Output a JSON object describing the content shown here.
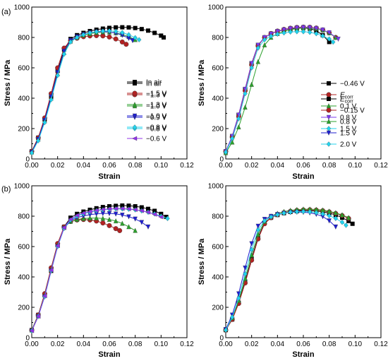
{
  "panel_labels": [
    "(a)",
    "(b)"
  ],
  "chart_data": [
    {
      "id": "a-left",
      "type": "line",
      "xlabel": "Strain",
      "ylabel": "Stress / MPa",
      "xlim": [
        0,
        0.12
      ],
      "ylim": [
        0,
        1000
      ],
      "xticks": [
        0.0,
        0.02,
        0.04,
        0.06,
        0.08,
        0.1,
        0.12
      ],
      "yticks": [
        0,
        200,
        400,
        600,
        800,
        1000
      ],
      "legend_position": "center-right",
      "series": [
        {
          "name": "In air",
          "color": "#000000",
          "marker": "square",
          "x": [
            0,
            0.005,
            0.01,
            0.015,
            0.02,
            0.025,
            0.03,
            0.035,
            0.04,
            0.045,
            0.05,
            0.055,
            0.06,
            0.065,
            0.07,
            0.075,
            0.08,
            0.085,
            0.09,
            0.095,
            0.1,
            0.102
          ],
          "y": [
            50,
            140,
            260,
            410,
            580,
            720,
            790,
            815,
            830,
            842,
            851,
            858,
            863,
            866,
            867,
            866,
            862,
            855,
            845,
            830,
            812,
            800
          ]
        },
        {
          "name": "−1.3 V",
          "color": "#b22222",
          "marker": "circle",
          "x": [
            0,
            0.005,
            0.01,
            0.015,
            0.02,
            0.025,
            0.03,
            0.035,
            0.04,
            0.045,
            0.05,
            0.055,
            0.06,
            0.065,
            0.07,
            0.073
          ],
          "y": [
            50,
            140,
            270,
            430,
            600,
            730,
            780,
            795,
            805,
            810,
            812,
            810,
            803,
            790,
            770,
            755
          ]
        },
        {
          "name": "−1.0 V",
          "color": "#2ca02c",
          "marker": "triangle-up",
          "x": [
            0,
            0.005,
            0.01,
            0.015,
            0.02,
            0.025,
            0.03,
            0.035,
            0.04,
            0.045,
            0.05,
            0.055,
            0.06,
            0.065,
            0.07,
            0.075,
            0.08
          ],
          "y": [
            45,
            130,
            250,
            400,
            560,
            700,
            775,
            800,
            815,
            825,
            832,
            836,
            835,
            830,
            820,
            805,
            785
          ]
        },
        {
          "name": "−0.9 V",
          "color": "#1f1fd0",
          "marker": "triangle-down",
          "x": [
            0,
            0.005,
            0.01,
            0.015,
            0.02,
            0.025,
            0.03,
            0.035,
            0.04,
            0.045,
            0.05,
            0.055,
            0.06,
            0.065,
            0.07,
            0.075,
            0.078
          ],
          "y": [
            45,
            130,
            255,
            410,
            570,
            710,
            780,
            805,
            820,
            830,
            836,
            838,
            836,
            828,
            815,
            795,
            780
          ]
        },
        {
          "name": "−0.8 V",
          "color": "#22d3ee",
          "marker": "diamond",
          "x": [
            0,
            0.005,
            0.01,
            0.015,
            0.02,
            0.025,
            0.03,
            0.035,
            0.04,
            0.045,
            0.05,
            0.055,
            0.06,
            0.065,
            0.07,
            0.075,
            0.08,
            0.083
          ],
          "y": [
            40,
            120,
            240,
            390,
            550,
            690,
            770,
            800,
            818,
            830,
            838,
            842,
            843,
            840,
            832,
            818,
            798,
            785
          ]
        }
      ]
    },
    {
      "id": "a-right",
      "type": "line",
      "xlabel": "Strain",
      "ylabel": "Stress / MPa",
      "xlim": [
        0,
        0.12
      ],
      "ylim": [
        0,
        1000
      ],
      "xticks": [
        0.0,
        0.02,
        0.04,
        0.06,
        0.08,
        0.1,
        0.12
      ],
      "yticks": [
        0,
        200,
        400,
        600,
        800,
        1000
      ],
      "legend_position": "center-right",
      "series": [
        {
          "name": "−0.46 V",
          "color": "#000000",
          "marker": "square",
          "x": [
            0,
            0.005,
            0.01,
            0.015,
            0.02,
            0.025,
            0.03,
            0.035,
            0.04,
            0.045,
            0.05,
            0.055,
            0.06,
            0.065,
            0.07,
            0.075,
            0.08
          ],
          "y": [
            50,
            150,
            290,
            460,
            630,
            750,
            800,
            825,
            840,
            850,
            857,
            861,
            862,
            858,
            845,
            815,
            770
          ]
        },
        {
          "name": "E_corr",
          "color": "#b22222",
          "marker": "circle",
          "x": [
            0,
            0.005,
            0.01,
            0.015,
            0.02,
            0.025,
            0.03,
            0.035,
            0.04,
            0.045,
            0.05,
            0.055,
            0.06,
            0.065,
            0.07,
            0.075,
            0.08,
            0.085
          ],
          "y": [
            50,
            145,
            280,
            450,
            620,
            745,
            800,
            826,
            842,
            853,
            861,
            866,
            868,
            867,
            862,
            850,
            830,
            800
          ]
        },
        {
          "name": "0.1 V",
          "color": "#2ca02c",
          "marker": "triangle-up",
          "x": [
            0,
            0.005,
            0.01,
            0.015,
            0.02,
            0.025,
            0.03,
            0.035,
            0.04,
            0.045,
            0.05,
            0.055,
            0.06,
            0.065,
            0.07,
            0.075,
            0.08,
            0.085
          ],
          "y": [
            40,
            110,
            210,
            340,
            490,
            640,
            750,
            800,
            825,
            840,
            851,
            858,
            862,
            862,
            858,
            848,
            830,
            800
          ]
        },
        {
          "name": "0.8 V",
          "color": "#7c3aed",
          "marker": "triangle-down",
          "x": [
            0,
            0.005,
            0.01,
            0.015,
            0.02,
            0.025,
            0.03,
            0.035,
            0.04,
            0.045,
            0.05,
            0.055,
            0.06,
            0.065,
            0.07,
            0.075,
            0.08,
            0.087
          ],
          "y": [
            50,
            150,
            290,
            460,
            630,
            750,
            800,
            824,
            840,
            851,
            859,
            864,
            866,
            865,
            860,
            850,
            832,
            790
          ]
        },
        {
          "name": "1.5 V",
          "color": "#22d3ee",
          "marker": "diamond",
          "x": [
            0,
            0.005,
            0.01,
            0.015,
            0.02,
            0.025,
            0.03,
            0.035,
            0.04,
            0.045,
            0.05,
            0.055,
            0.06,
            0.065,
            0.07,
            0.075,
            0.08,
            0.083
          ],
          "y": [
            45,
            135,
            265,
            430,
            600,
            730,
            785,
            808,
            822,
            830,
            836,
            838,
            838,
            834,
            825,
            810,
            790,
            770
          ]
        }
      ]
    },
    {
      "id": "b-left",
      "type": "line",
      "xlabel": "Strain",
      "ylabel": "Stress / MPa",
      "xlim": [
        0,
        0.12
      ],
      "ylim": [
        0,
        1000
      ],
      "xticks": [
        0.0,
        0.02,
        0.04,
        0.06,
        0.08,
        0.1,
        0.12
      ],
      "yticks": [
        0,
        200,
        400,
        600,
        800,
        1000
      ],
      "legend_position": "center-right",
      "series": [
        {
          "name": "In air",
          "color": "#000000",
          "marker": "square",
          "x": [
            0,
            0.005,
            0.01,
            0.015,
            0.02,
            0.025,
            0.03,
            0.035,
            0.04,
            0.045,
            0.05,
            0.055,
            0.06,
            0.065,
            0.07,
            0.075,
            0.08,
            0.085,
            0.09,
            0.095,
            0.1,
            0.104
          ],
          "y": [
            50,
            150,
            280,
            440,
            610,
            730,
            790,
            815,
            830,
            842,
            852,
            860,
            865,
            868,
            870,
            869,
            865,
            858,
            848,
            835,
            815,
            795
          ]
        },
        {
          "name": "−1.5 V",
          "color": "#b22222",
          "marker": "circle",
          "x": [
            0,
            0.005,
            0.01,
            0.015,
            0.02,
            0.025,
            0.03,
            0.035,
            0.04,
            0.045,
            0.05,
            0.055,
            0.06,
            0.065,
            0.068
          ],
          "y": [
            50,
            150,
            290,
            460,
            620,
            730,
            765,
            775,
            778,
            775,
            768,
            755,
            738,
            718,
            705
          ]
        },
        {
          "name": "−1.3 V",
          "color": "#2ca02c",
          "marker": "triangle-up",
          "x": [
            0,
            0.005,
            0.01,
            0.015,
            0.02,
            0.025,
            0.03,
            0.035,
            0.04,
            0.045,
            0.05,
            0.055,
            0.06,
            0.065,
            0.07,
            0.075,
            0.08
          ],
          "y": [
            50,
            145,
            280,
            450,
            610,
            725,
            765,
            778,
            784,
            787,
            788,
            785,
            778,
            768,
            752,
            730,
            705
          ]
        },
        {
          "name": "−1.0 V",
          "color": "#1f1fd0",
          "marker": "triangle-down",
          "x": [
            0,
            0.005,
            0.01,
            0.015,
            0.02,
            0.025,
            0.03,
            0.035,
            0.04,
            0.045,
            0.05,
            0.055,
            0.06,
            0.065,
            0.07,
            0.075,
            0.08,
            0.085,
            0.09
          ],
          "y": [
            45,
            140,
            270,
            440,
            600,
            720,
            770,
            790,
            802,
            810,
            815,
            818,
            818,
            815,
            808,
            797,
            782,
            760,
            730
          ]
        },
        {
          "name": "−0.8 V",
          "color": "#22d3ee",
          "marker": "diamond",
          "x": [
            0,
            0.005,
            0.01,
            0.015,
            0.02,
            0.025,
            0.03,
            0.035,
            0.04,
            0.045,
            0.05,
            0.055,
            0.06,
            0.065,
            0.07,
            0.075,
            0.08,
            0.085,
            0.09,
            0.095,
            0.1,
            0.105
          ],
          "y": [
            45,
            140,
            270,
            440,
            600,
            720,
            775,
            800,
            816,
            827,
            836,
            842,
            846,
            848,
            848,
            846,
            842,
            835,
            826,
            815,
            800,
            785
          ]
        },
        {
          "name": "−0.6 V",
          "color": "#9333ea",
          "marker": "triangle-left",
          "x": [
            0,
            0.005,
            0.01,
            0.015,
            0.02,
            0.025,
            0.03,
            0.035,
            0.04,
            0.045,
            0.05,
            0.055,
            0.06,
            0.065,
            0.07,
            0.075,
            0.08,
            0.085,
            0.09,
            0.095,
            0.1
          ],
          "y": [
            45,
            140,
            275,
            445,
            605,
            725,
            780,
            805,
            820,
            830,
            838,
            844,
            848,
            850,
            850,
            848,
            843,
            836,
            826,
            812,
            795
          ]
        }
      ]
    },
    {
      "id": "b-right",
      "type": "line",
      "xlabel": "Strain",
      "ylabel": "Stress / MPa",
      "xlim": [
        0,
        0.12
      ],
      "ylim": [
        0,
        1000
      ],
      "xticks": [
        0.0,
        0.02,
        0.04,
        0.06,
        0.08,
        0.1,
        0.12
      ],
      "yticks": [
        0,
        200,
        400,
        600,
        800,
        1000
      ],
      "legend_position": "center-right",
      "series": [
        {
          "name": "E_corr",
          "color": "#000000",
          "marker": "square",
          "x": [
            0,
            0.005,
            0.01,
            0.015,
            0.02,
            0.025,
            0.03,
            0.035,
            0.04,
            0.045,
            0.05,
            0.055,
            0.06,
            0.065,
            0.07,
            0.075,
            0.08,
            0.085,
            0.09,
            0.095,
            0.098
          ],
          "y": [
            50,
            120,
            230,
            370,
            520,
            660,
            755,
            790,
            808,
            820,
            828,
            833,
            836,
            836,
            834,
            829,
            820,
            808,
            790,
            768,
            750
          ]
        },
        {
          "name": "−0.15 V",
          "color": "#b22222",
          "marker": "circle",
          "x": [
            0,
            0.005,
            0.01,
            0.015,
            0.02,
            0.025,
            0.03,
            0.035,
            0.04,
            0.045,
            0.05,
            0.055,
            0.06,
            0.065,
            0.07,
            0.075,
            0.08,
            0.085,
            0.09,
            0.095
          ],
          "y": [
            50,
            120,
            225,
            360,
            510,
            650,
            750,
            790,
            810,
            823,
            832,
            838,
            841,
            842,
            840,
            836,
            828,
            818,
            804,
            785
          ]
        },
        {
          "name": "0.8 V",
          "color": "#2ca02c",
          "marker": "triangle-up",
          "x": [
            0,
            0.005,
            0.01,
            0.015,
            0.02,
            0.025,
            0.03,
            0.035,
            0.04,
            0.045,
            0.05,
            0.055,
            0.06,
            0.065,
            0.07,
            0.075,
            0.08,
            0.085,
            0.09,
            0.095
          ],
          "y": [
            55,
            130,
            245,
            390,
            545,
            680,
            765,
            800,
            818,
            830,
            838,
            843,
            846,
            846,
            844,
            840,
            832,
            822,
            808,
            790
          ]
        },
        {
          "name": "1.5 V",
          "color": "#1f1fd0",
          "marker": "triangle-down",
          "x": [
            0,
            0.005,
            0.01,
            0.015,
            0.02,
            0.025,
            0.03,
            0.035,
            0.04,
            0.045,
            0.05,
            0.055,
            0.06,
            0.065,
            0.07,
            0.075,
            0.08,
            0.085
          ],
          "y": [
            55,
            150,
            290,
            460,
            620,
            735,
            780,
            800,
            812,
            820,
            825,
            827,
            826,
            822,
            813,
            798,
            770,
            730
          ]
        },
        {
          "name": "2.0 V",
          "color": "#22d3ee",
          "marker": "diamond",
          "x": [
            0,
            0.005,
            0.01,
            0.015,
            0.02,
            0.025,
            0.03,
            0.035,
            0.04,
            0.045,
            0.05,
            0.055,
            0.06,
            0.065,
            0.07,
            0.075,
            0.08,
            0.085,
            0.09,
            0.093
          ],
          "y": [
            50,
            135,
            260,
            420,
            580,
            710,
            770,
            795,
            810,
            820,
            826,
            829,
            830,
            828,
            823,
            815,
            803,
            785,
            760,
            740
          ]
        }
      ]
    }
  ]
}
